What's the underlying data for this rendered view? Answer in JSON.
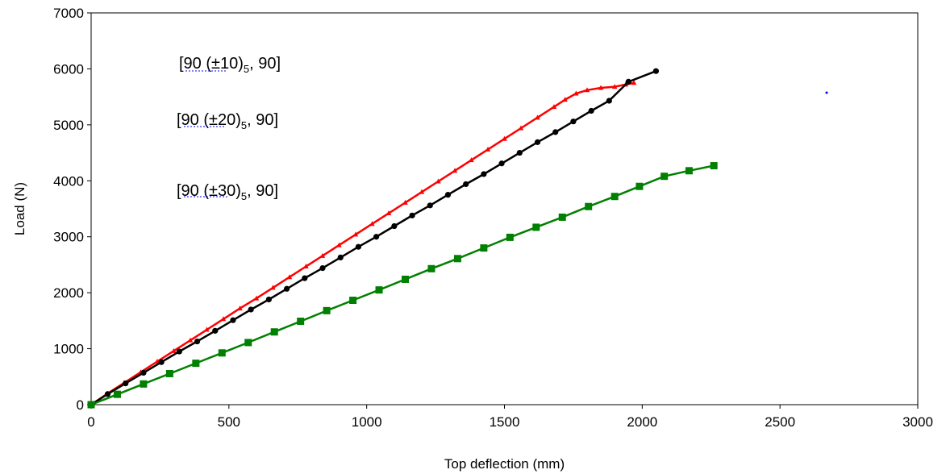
{
  "chart_data": {
    "type": "line",
    "xlabel": "Top deflection (mm)",
    "ylabel": "Load (N)",
    "xlim": [
      0,
      3000
    ],
    "ylim": [
      0,
      7000
    ],
    "xticks": [
      "0",
      "500",
      "1000",
      "1500",
      "2000",
      "2500",
      "3000"
    ],
    "yticks": [
      "0",
      "1000",
      "2000",
      "3000",
      "4000",
      "5000",
      "6000",
      "7000"
    ],
    "grid": false,
    "legend": [
      {
        "pre": "[90 (±10)",
        "sub": "5",
        "post": ", 90]"
      },
      {
        "pre": "[90 (±20)",
        "sub": "5",
        "post": ", 90]"
      },
      {
        "pre": "[90 (±30)",
        "sub": "5",
        "post": ", 90]"
      }
    ],
    "series": [
      {
        "color": "#ff0000",
        "marker": "triangle",
        "x": [
          0,
          60,
          120,
          180,
          240,
          300,
          360,
          420,
          480,
          540,
          600,
          660,
          720,
          780,
          840,
          900,
          960,
          1020,
          1080,
          1140,
          1200,
          1260,
          1320,
          1380,
          1440,
          1500,
          1560,
          1620,
          1680,
          1720,
          1760,
          1800,
          1850,
          1900,
          1940,
          1970
        ],
        "y": [
          0,
          200,
          390,
          580,
          770,
          960,
          1150,
          1340,
          1530,
          1720,
          1900,
          2090,
          2280,
          2470,
          2660,
          2850,
          3040,
          3230,
          3420,
          3610,
          3800,
          3990,
          4180,
          4370,
          4560,
          4750,
          4940,
          5130,
          5320,
          5450,
          5560,
          5620,
          5660,
          5680,
          5720,
          5750
        ]
      },
      {
        "color": "#000000",
        "marker": "circle",
        "x": [
          0,
          60,
          125,
          190,
          255,
          320,
          385,
          450,
          515,
          580,
          645,
          710,
          775,
          840,
          905,
          970,
          1035,
          1100,
          1165,
          1230,
          1295,
          1360,
          1425,
          1490,
          1555,
          1620,
          1685,
          1750,
          1815,
          1880,
          1950,
          2050
        ],
        "y": [
          0,
          190,
          380,
          570,
          760,
          950,
          1130,
          1320,
          1510,
          1700,
          1880,
          2070,
          2260,
          2440,
          2630,
          2820,
          3000,
          3190,
          3380,
          3560,
          3750,
          3940,
          4120,
          4310,
          4500,
          4690,
          4870,
          5060,
          5250,
          5430,
          5770,
          5960
        ]
      },
      {
        "color": "#008000",
        "marker": "square",
        "x": [
          0,
          95,
          190,
          285,
          380,
          475,
          570,
          665,
          760,
          855,
          950,
          1045,
          1140,
          1235,
          1330,
          1425,
          1520,
          1615,
          1710,
          1805,
          1900,
          1990,
          2080,
          2170,
          2260
        ],
        "y": [
          0,
          185,
          370,
          555,
          740,
          925,
          1110,
          1300,
          1490,
          1680,
          1865,
          2050,
          2240,
          2430,
          2610,
          2800,
          2990,
          3170,
          3350,
          3540,
          3720,
          3900,
          4080,
          4180,
          4270
        ]
      }
    ]
  }
}
